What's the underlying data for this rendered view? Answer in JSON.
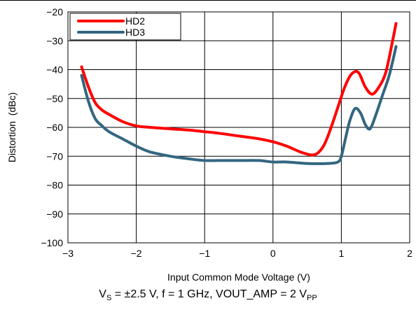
{
  "chart_data": {
    "type": "line",
    "xlabel": "Input Common Mode Voltage (V)",
    "ylabel": "Distortion  (dBc)",
    "xlim": [
      -3,
      2
    ],
    "ylim": [
      -100,
      -20
    ],
    "xticks": [
      -3,
      -2,
      -1,
      0,
      1,
      2
    ],
    "yticks": [
      -20,
      -30,
      -40,
      -50,
      -60,
      -70,
      -80,
      -90,
      -100
    ],
    "xtick_labels": [
      "−3",
      "−2",
      "−1",
      "0",
      "1",
      "2"
    ],
    "ytick_labels": [
      "−20",
      "−30",
      "−40",
      "−50",
      "−60",
      "−70",
      "−80",
      "−90",
      "−100"
    ],
    "grid": true,
    "legend_position": "top-left",
    "series": [
      {
        "name": "HD2",
        "color": "#ff0000",
        "x": [
          -2.8,
          -2.7,
          -2.6,
          -2.5,
          -2.4,
          -2.2,
          -2.0,
          -1.8,
          -1.5,
          -1.2,
          -1.0,
          -0.8,
          -0.5,
          -0.2,
          0.0,
          0.2,
          0.4,
          0.55,
          0.65,
          0.75,
          0.85,
          0.95,
          1.05,
          1.15,
          1.25,
          1.35,
          1.45,
          1.55,
          1.65,
          1.75,
          1.8
        ],
        "values": [
          -39,
          -46,
          -51.5,
          -54,
          -55.5,
          -58,
          -59.5,
          -60,
          -60.5,
          -61,
          -61.5,
          -62,
          -63,
          -64,
          -65,
          -66.5,
          -68.5,
          -69.5,
          -69,
          -66,
          -60,
          -53,
          -46,
          -41.5,
          -41,
          -46,
          -48.5,
          -46,
          -41,
          -30,
          -24
        ]
      },
      {
        "name": "HD3",
        "color": "#336680",
        "x": [
          -2.8,
          -2.7,
          -2.6,
          -2.5,
          -2.4,
          -2.2,
          -2.0,
          -1.8,
          -1.5,
          -1.2,
          -1.0,
          -0.8,
          -0.5,
          -0.2,
          0.0,
          0.2,
          0.5,
          0.8,
          0.95,
          1.0,
          1.05,
          1.12,
          1.2,
          1.28,
          1.35,
          1.42,
          1.5,
          1.6,
          1.7,
          1.8
        ],
        "values": [
          -42,
          -51,
          -57,
          -59.5,
          -61.5,
          -64,
          -66.5,
          -68.5,
          -70,
          -71,
          -71.5,
          -71.5,
          -71.5,
          -71.5,
          -72,
          -72,
          -72.5,
          -72.5,
          -72,
          -70,
          -65,
          -58,
          -53.5,
          -55,
          -59,
          -60.5,
          -56,
          -49,
          -42,
          -32
        ]
      }
    ]
  },
  "caption": {
    "v": "V",
    "v_sub": "S",
    "middle": " = ±2.5 V, f = 1 GHz, VOUT_AMP = 2 V",
    "pp_sub": "PP"
  }
}
